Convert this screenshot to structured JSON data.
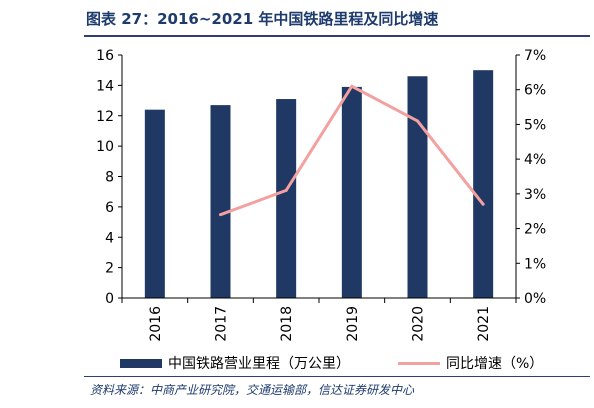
{
  "title": "图表 27：2016~2021 年中国铁路里程及同比增速",
  "chart_data": {
    "type": "bar",
    "categories": [
      "2016",
      "2017",
      "2018",
      "2019",
      "2020",
      "2021"
    ],
    "series": [
      {
        "name": "中国铁路营业里程（万公里）",
        "type": "bar",
        "axis": "left",
        "values": [
          12.4,
          12.7,
          13.1,
          13.9,
          14.6,
          15.0
        ]
      },
      {
        "name": "同比增速（%）",
        "type": "line",
        "axis": "right",
        "values": [
          null,
          2.4,
          3.1,
          6.1,
          5.1,
          2.7
        ]
      }
    ],
    "ylim_left": [
      0,
      16
    ],
    "yticks_left": [
      "0",
      "2",
      "4",
      "6",
      "8",
      "10",
      "12",
      "14",
      "16"
    ],
    "ylim_right": [
      0,
      7
    ],
    "yticks_right": [
      "0%",
      "1%",
      "2%",
      "3%",
      "4%",
      "5%",
      "6%",
      "7%"
    ],
    "grid": false,
    "legend_position": "bottom",
    "colors": {
      "bar": "#1f3864",
      "line": "#f2a0a0",
      "axis": "#000000"
    }
  },
  "legend": {
    "bar_label": "中国铁路营业里程（万公里）",
    "line_label": "同比增速（%）"
  },
  "source": "资料来源：中商产业研究院，交通运输部，信达证券研发中心"
}
